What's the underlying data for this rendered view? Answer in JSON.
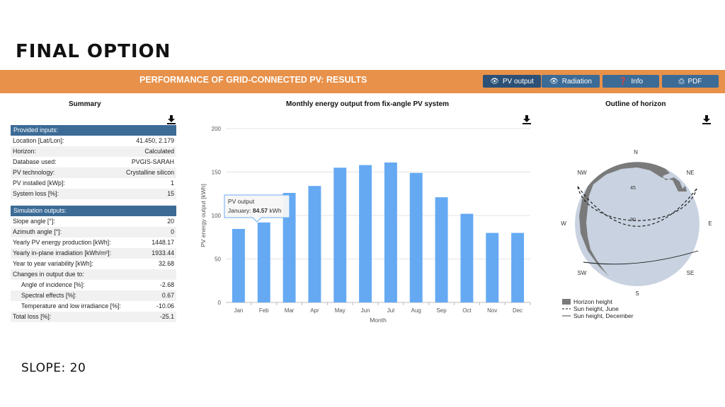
{
  "slide": {
    "title": "FINAL OPTION",
    "footer": "SLOPE: 20"
  },
  "banner": {
    "title": "PERFORMANCE OF GRID-CONNECTED PV: RESULTS",
    "buttons": {
      "pv_output": "PV output",
      "radiation": "Radiation",
      "info": "Info",
      "pdf": "PDF"
    }
  },
  "summary": {
    "title": "Summary",
    "inputs_header": "Provided inputs:",
    "inputs": [
      {
        "label": "Location [Lat/Lon]:",
        "value": "41.450, 2.179"
      },
      {
        "label": "Horizon:",
        "value": "Calculated"
      },
      {
        "label": "Database used:",
        "value": "PVGIS-SARAH"
      },
      {
        "label": "PV technology:",
        "value": "Crystalline silicon"
      },
      {
        "label": "PV installed [kWp]:",
        "value": "1"
      },
      {
        "label": "System loss [%]:",
        "value": "15"
      }
    ],
    "outputs_header": "Simulation outputs:",
    "outputs": [
      {
        "label": "Slope angle [°]:",
        "value": "20"
      },
      {
        "label": "Azimuth angle [°]:",
        "value": "0"
      },
      {
        "label": "Yearly PV energy production [kWh]:",
        "value": "1448.17"
      },
      {
        "label": "Yearly in-plane irradiation [kWh/m²]:",
        "value": "1933.44"
      },
      {
        "label": "Year to year variability [kWh]:",
        "value": "32.68"
      },
      {
        "label": "Changes in output due to:",
        "value": ""
      },
      {
        "label": "Angle of incidence [%]:",
        "value": "-2.68"
      },
      {
        "label": "Spectral effects [%]:",
        "value": "0.67"
      },
      {
        "label": "Temperature and low irradiance [%]:",
        "value": "-10.06"
      },
      {
        "label": "Total loss [%]:",
        "value": "-25.1"
      }
    ]
  },
  "chart_data": {
    "type": "bar",
    "title": "Monthly energy output from fix-angle PV system",
    "categories": [
      "Jan",
      "Feb",
      "Mar",
      "Apr",
      "May",
      "Jun",
      "Jul",
      "Aug",
      "Sep",
      "Oct",
      "Nov",
      "Dec"
    ],
    "values": [
      84.57,
      92,
      126,
      134,
      155,
      158,
      161,
      149,
      121,
      102,
      80,
      80
    ],
    "xlabel": "Month",
    "ylabel": "PV energy output [kWh]",
    "ylim": [
      0,
      200
    ],
    "yticks": [
      0,
      50,
      100,
      150,
      200
    ],
    "grid": true,
    "color": "#65a9f3",
    "tooltip": {
      "series": "PV output",
      "label": "January:",
      "value": "84.57",
      "unit": "kWh"
    }
  },
  "horizon": {
    "title": "Outline of horizon",
    "directions": {
      "n": "N",
      "ne": "NE",
      "e": "E",
      "se": "SE",
      "s": "S",
      "sw": "SW",
      "w": "W",
      "nw": "NW"
    },
    "rings": {
      "r45": "45",
      "r90": "90"
    },
    "legend": {
      "horizon": "Horizon height",
      "june": "Sun height, June",
      "december": "Sun height, December"
    },
    "colors": {
      "horizon": "#7a7a7a",
      "sky": "#c8d2e0"
    }
  }
}
